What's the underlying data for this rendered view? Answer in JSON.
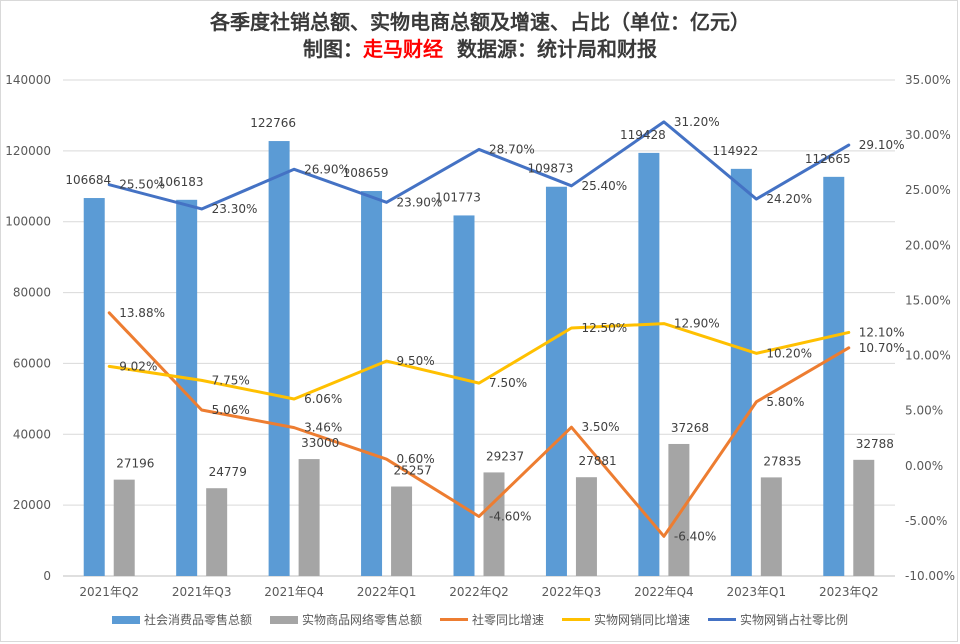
{
  "title": {
    "line1": "各季度社销总额、实物电商总额及增速、占比（单位：亿元）",
    "line2_prefix": "制图：",
    "line2_credit": "走马财经",
    "line2_suffix": "  数据源：统计局和财报"
  },
  "chart_data": {
    "type": "bar",
    "categories": [
      "2021年Q2",
      "2021年Q3",
      "2021年Q4",
      "2022年Q1",
      "2022年Q2",
      "2022年Q3",
      "2022年Q4",
      "2023年Q1",
      "2023年Q2"
    ],
    "left_axis": {
      "ylim": [
        0,
        140000
      ],
      "ticks": [
        0,
        20000,
        40000,
        60000,
        80000,
        100000,
        120000,
        140000
      ]
    },
    "right_axis": {
      "ylim": [
        -10,
        35
      ],
      "ticks": [
        "-10.00%",
        "-5.00%",
        "0.00%",
        "5.00%",
        "10.00%",
        "15.00%",
        "20.00%",
        "25.00%",
        "30.00%",
        "35.00%"
      ]
    },
    "grid": true,
    "legend_position": "bottom",
    "series": [
      {
        "name": "社会消费品零售总额",
        "type": "bar",
        "axis": "left",
        "color": "#5b9bd5",
        "values": [
          106684,
          106183,
          122766,
          108659,
          101773,
          109873,
          119428,
          114922,
          112665
        ],
        "labels": [
          "106684",
          "106183",
          "122766",
          "108659",
          "101773",
          "109873",
          "119428",
          "114922",
          "112665"
        ]
      },
      {
        "name": "实物商品网络零售总额",
        "type": "bar",
        "axis": "left",
        "color": "#a5a5a5",
        "values": [
          27196,
          24779,
          33000,
          25257,
          29237,
          27881,
          37268,
          27835,
          32788
        ],
        "labels": [
          "27196",
          "24779",
          "33000",
          "25257",
          "29237",
          "27881",
          "37268",
          "27835",
          "32788"
        ]
      },
      {
        "name": "社零同比增速",
        "type": "line",
        "axis": "right",
        "color": "#ed7d31",
        "values": [
          13.88,
          5.06,
          3.46,
          0.6,
          -4.6,
          3.5,
          -6.4,
          5.8,
          10.7
        ],
        "labels": [
          "13.88%",
          "5.06%",
          "3.46%",
          "0.60%",
          "-4.60%",
          "3.50%",
          "-6.40%",
          "5.80%",
          "10.70%"
        ]
      },
      {
        "name": "实物网销同比增速",
        "type": "line",
        "axis": "right",
        "color": "#ffc000",
        "values": [
          9.02,
          7.75,
          6.06,
          9.5,
          7.5,
          12.5,
          12.9,
          10.2,
          12.1
        ],
        "labels": [
          "9.02%",
          "7.75%",
          "6.06%",
          "9.50%",
          "7.50%",
          "12.50%",
          "12.90%",
          "10.20%",
          "12.10%"
        ]
      },
      {
        "name": "实物网销占社零比例",
        "type": "line",
        "axis": "right",
        "color": "#4472c4",
        "values": [
          25.5,
          23.3,
          26.9,
          23.9,
          28.7,
          25.4,
          31.2,
          24.2,
          29.1
        ],
        "labels": [
          "25.50%",
          "23.30%",
          "26.90%",
          "23.90%",
          "28.70%",
          "25.40%",
          "31.20%",
          "24.20%",
          "29.10%"
        ]
      }
    ]
  }
}
